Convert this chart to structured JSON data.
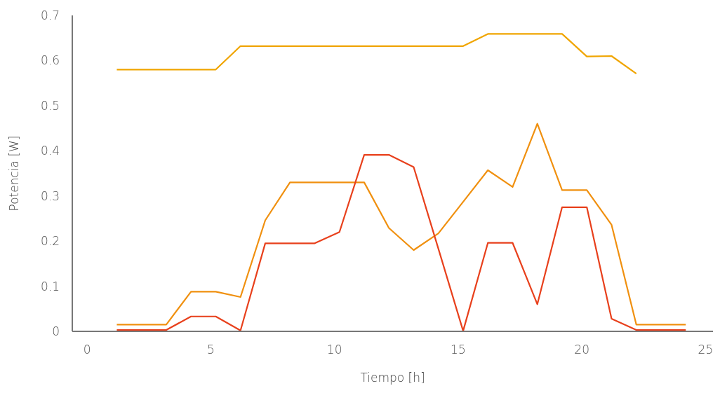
{
  "chart_data": {
    "type": "line",
    "xlabel": "Tiempo [h]",
    "ylabel": "Potencia [W]",
    "x": [
      1.2,
      2.2,
      3.2,
      4.2,
      5.2,
      6.2,
      7.2,
      8.2,
      9.2,
      10.2,
      11.2,
      12.2,
      13.2,
      14.2,
      15.2,
      16.2,
      17.2,
      18.2,
      19.2,
      20.2,
      21.2,
      22.2,
      23.2,
      24.2
    ],
    "xlim": [
      -0.6,
      25.3
    ],
    "xticks": [
      0,
      5,
      10,
      15,
      20,
      25
    ],
    "ylim": [
      0,
      0.7
    ],
    "yticks": [
      0,
      0.1,
      0.2,
      0.3,
      0.4,
      0.5,
      0.6,
      0.7
    ],
    "grid": false,
    "legend": false,
    "marker": "none",
    "line_style": "solid",
    "series": [
      {
        "color": "#f0a500",
        "values": [
          0.58,
          0.58,
          0.58,
          0.58,
          0.58,
          0.632,
          0.632,
          0.632,
          0.632,
          0.632,
          0.632,
          0.632,
          0.632,
          0.632,
          0.632,
          0.659,
          0.659,
          0.659,
          0.659,
          0.609,
          0.61,
          0.571,
          null,
          null
        ]
      },
      {
        "color": "#f0900f",
        "values": [
          0.015,
          0.015,
          0.015,
          0.088,
          0.088,
          0.076,
          0.246,
          0.33,
          0.33,
          0.33,
          0.33,
          0.229,
          0.18,
          0.217,
          0.287,
          0.357,
          0.32,
          0.46,
          0.313,
          0.313,
          0.236,
          0.015,
          0.015,
          0.015
        ]
      },
      {
        "color": "#e8401c",
        "values": [
          0.003,
          0.003,
          0.003,
          0.033,
          0.033,
          0.002,
          0.195,
          0.195,
          0.195,
          0.22,
          0.391,
          0.391,
          0.364,
          0.183,
          0.001,
          0.196,
          0.196,
          0.06,
          0.275,
          0.275,
          0.028,
          0.003,
          0.003,
          0.003
        ]
      }
    ]
  }
}
